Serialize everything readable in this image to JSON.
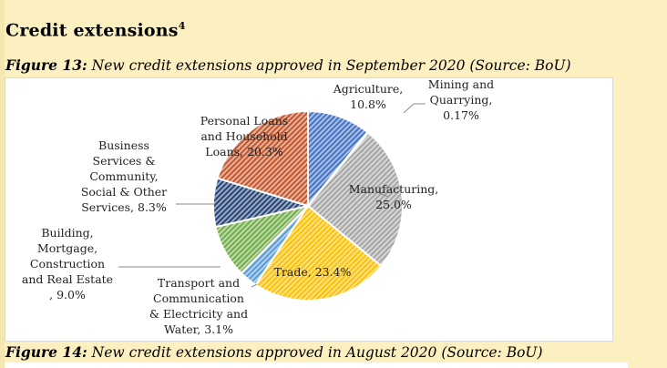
{
  "section": {
    "title": "Credit extensions",
    "footnote": "4"
  },
  "figure13": {
    "label": "Figure 13:",
    "text": " New credit extensions approved in September 2020 (Source: BoU)"
  },
  "figure14": {
    "label": "Figure 14:",
    "text": " New credit extensions approved in August 2020 (Source: BoU)"
  },
  "chart_data": {
    "type": "pie",
    "slices": [
      {
        "label": "Agriculture, 10.8%",
        "category": "Agriculture",
        "value": 10.8,
        "color": "#4472C4"
      },
      {
        "label": "Mining and Quarrying, 0.17%",
        "category": "Mining and Quarrying",
        "value": 0.17,
        "color": "#ED7D31"
      },
      {
        "label": "Manufacturing, 25.0%",
        "category": "Manufacturing",
        "value": 25.0,
        "color": "#A5A5A5"
      },
      {
        "label": "Trade, 23.4%",
        "category": "Trade",
        "value": 23.4,
        "color": "#FFC000"
      },
      {
        "label": "Transport and Communication & Electricity and Water, 3.1%",
        "category": "Transport and Communication & Electricity and Water",
        "value": 3.1,
        "color": "#5B9BD5"
      },
      {
        "label": "Building, Mortgage, Construction and Real Estate , 9.0%",
        "category": "Building, Mortgage, Construction and Real Estate",
        "value": 9.0,
        "color": "#70AD47"
      },
      {
        "label": "Business Services & Community, Social & Other Services, 8.3%",
        "category": "Business Services & Community, Social & Other Services",
        "value": 8.3,
        "color": "#264478"
      },
      {
        "label": "Personal Loans and Household Loans, 20.3%",
        "category": "Personal Loans and Household Loans",
        "value": 20.3,
        "color": "#C5552A"
      }
    ],
    "label_lines": {
      "Agriculture": [
        "Agriculture,",
        "10.8%"
      ],
      "Mining and Quarrying": [
        "Mining and",
        "Quarrying,",
        "0.17%"
      ],
      "Manufacturing": [
        "Manufacturing,",
        "25.0%"
      ],
      "Trade": [
        "Trade, 23.4%"
      ],
      "Transport and Communication & Electricity and Water": [
        "Transport and",
        "Communication",
        "& Electricity and",
        "Water, 3.1%"
      ],
      "Building, Mortgage, Construction and Real Estate": [
        "Building,",
        "Mortgage,",
        "Construction",
        "and Real Estate",
        ", 9.0%"
      ],
      "Business Services & Community, Social & Other Services": [
        "Business",
        "Services &",
        "Community,",
        "Social & Other",
        "Services, 8.3%"
      ],
      "Personal Loans and Household Loans": [
        "Personal Loans",
        "and Household",
        "Loans, 20.3%"
      ]
    },
    "legend": "none"
  }
}
